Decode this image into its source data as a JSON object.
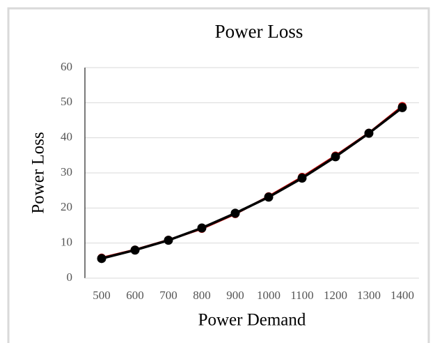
{
  "chart_data": {
    "type": "line",
    "title": "Power Loss",
    "x_label": "Power Demand",
    "y_label": "Power Loss",
    "categories": [
      "500",
      "600",
      "700",
      "800",
      "900",
      "1000",
      "1100",
      "1200",
      "1300",
      "1400"
    ],
    "series": [
      {
        "color": "#c00000",
        "values": [
          5.8,
          8.1,
          10.9,
          14.1,
          18.3,
          23.3,
          28.8,
          34.9,
          41.4,
          49.0
        ]
      },
      {
        "color": "#000000",
        "values": [
          5.6,
          8.0,
          10.8,
          14.3,
          18.5,
          23.1,
          28.5,
          34.6,
          41.3,
          48.6
        ]
      }
    ],
    "ylim": [
      0,
      60
    ],
    "yticks": [
      0,
      10,
      20,
      30,
      40,
      50,
      60
    ],
    "grid": true
  }
}
